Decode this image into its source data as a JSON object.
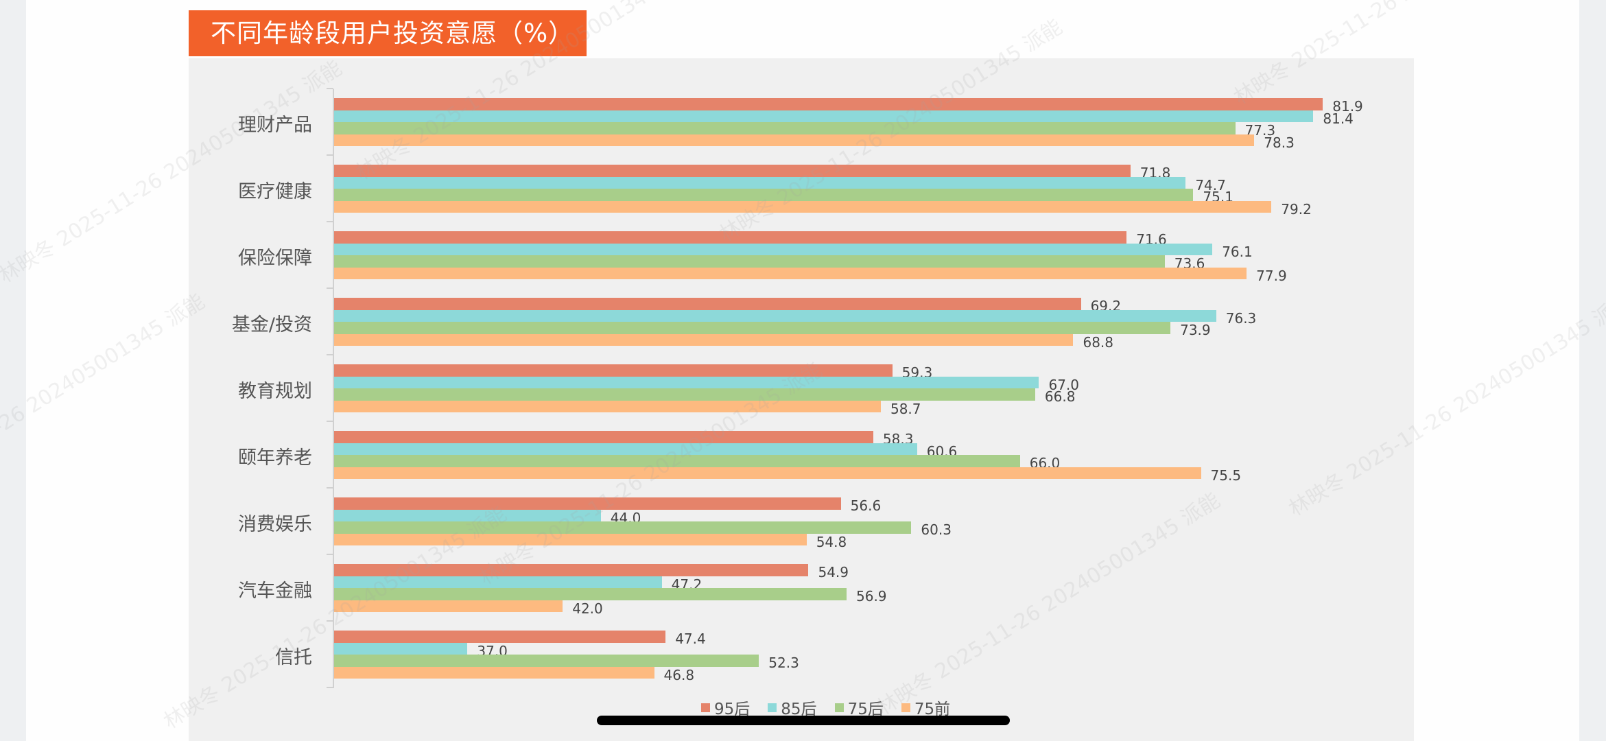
{
  "title": "不同年龄段用户投资意愿（%）",
  "colors": {
    "title_bg": "#F2612A",
    "panel_bg": "#F0F0F0",
    "series": [
      "#E5836A",
      "#8DD9D9",
      "#A8CE8A",
      "#FDBA80"
    ]
  },
  "legend": [
    {
      "label": "95后",
      "color": "#E5836A"
    },
    {
      "label": "85后",
      "color": "#8DD9D9"
    },
    {
      "label": "75后",
      "color": "#A8CE8A"
    },
    {
      "label": "75前",
      "color": "#FDBA80"
    }
  ],
  "watermark": "林映冬 2025-11-26 202405001345 派能",
  "chart_data": {
    "type": "bar",
    "orientation": "horizontal",
    "title": "不同年龄段用户投资意愿（%）",
    "xlabel": "",
    "ylabel": "",
    "xlim": [
      30,
      85
    ],
    "grid": false,
    "legend_position": "bottom",
    "categories": [
      "理财产品",
      "医疗健康",
      "保险保障",
      "基金/投资",
      "教育规划",
      "颐年养老",
      "消费娱乐",
      "汽车金融",
      "信托"
    ],
    "series": [
      {
        "name": "95后",
        "values": [
          81.9,
          71.8,
          71.6,
          69.2,
          59.3,
          58.3,
          56.6,
          54.9,
          47.4
        ]
      },
      {
        "name": "85后",
        "values": [
          81.4,
          74.7,
          76.1,
          76.3,
          67.0,
          60.6,
          44.0,
          47.2,
          37.0
        ]
      },
      {
        "name": "75后",
        "values": [
          77.3,
          75.1,
          73.6,
          73.9,
          66.8,
          66.0,
          60.3,
          56.9,
          52.3
        ]
      },
      {
        "name": "75前",
        "values": [
          78.3,
          79.2,
          77.9,
          68.8,
          58.7,
          75.5,
          54.8,
          42.0,
          46.8
        ]
      }
    ]
  }
}
